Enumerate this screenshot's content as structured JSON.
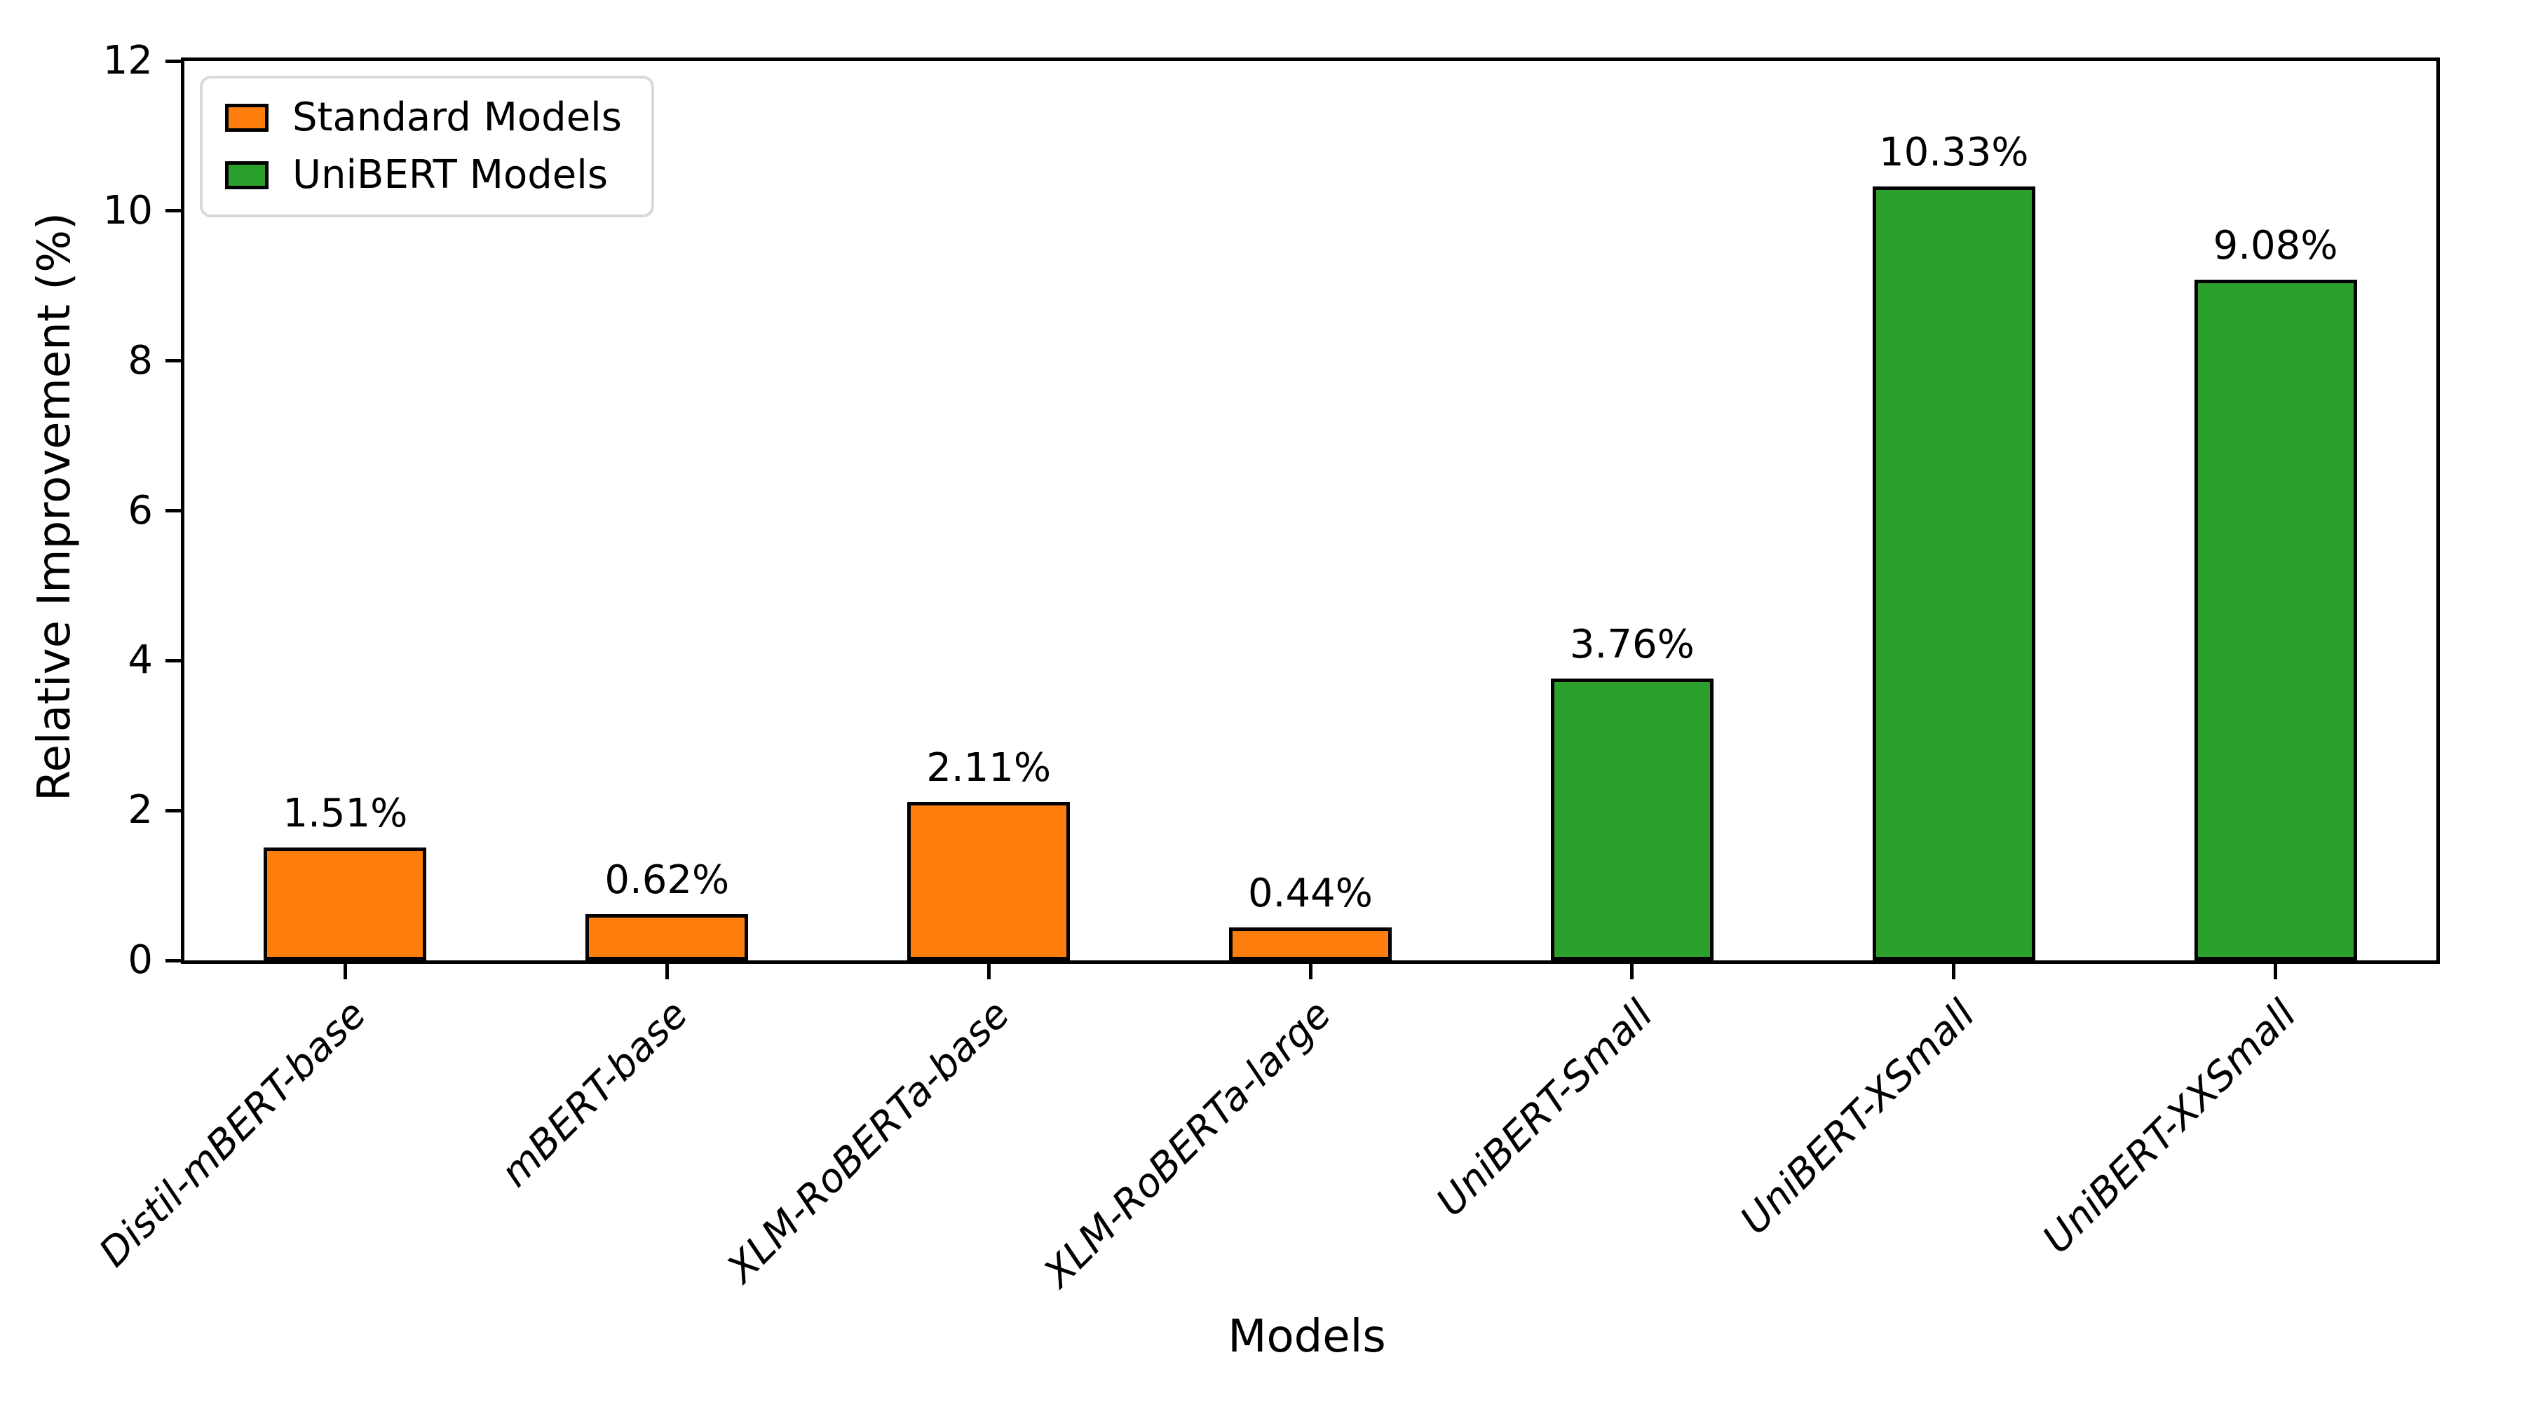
{
  "chart_data": {
    "type": "bar",
    "title": "",
    "xlabel": "Models",
    "ylabel": "Relative Improvement (%)",
    "ylim": [
      0,
      12
    ],
    "yticks": [
      0,
      2,
      4,
      6,
      8,
      10,
      12
    ],
    "grid": false,
    "categories": [
      "Distil-mBERT-base",
      "mBERT-base",
      "XLM-RoBERTa-base",
      "XLM-RoBERTa-large",
      "UniBERT-Small",
      "UniBERT-XSmall",
      "UniBERT-XXSmall"
    ],
    "series": [
      {
        "name": "Relative Improvement",
        "values": [
          1.51,
          0.62,
          2.11,
          0.44,
          3.76,
          10.33,
          9.08
        ]
      }
    ],
    "bar_value_labels": [
      "1.51%",
      "0.62%",
      "2.11%",
      "0.44%",
      "3.76%",
      "10.33%",
      "9.08%"
    ],
    "bar_groups": [
      "standard",
      "standard",
      "standard",
      "standard",
      "unibert",
      "unibert",
      "unibert"
    ],
    "legend": {
      "position": "upper left",
      "entries": [
        {
          "label": "Standard Models",
          "color": "#ff7f0e"
        },
        {
          "label": "UniBERT Models",
          "color": "#2ca02c"
        }
      ]
    },
    "colors": {
      "standard": "#ff7f0e",
      "unibert": "#2ca02c",
      "bar_edge": "#000000",
      "axis": "#000000",
      "legend_border": "#d9d9d9",
      "background": "#ffffff"
    }
  }
}
